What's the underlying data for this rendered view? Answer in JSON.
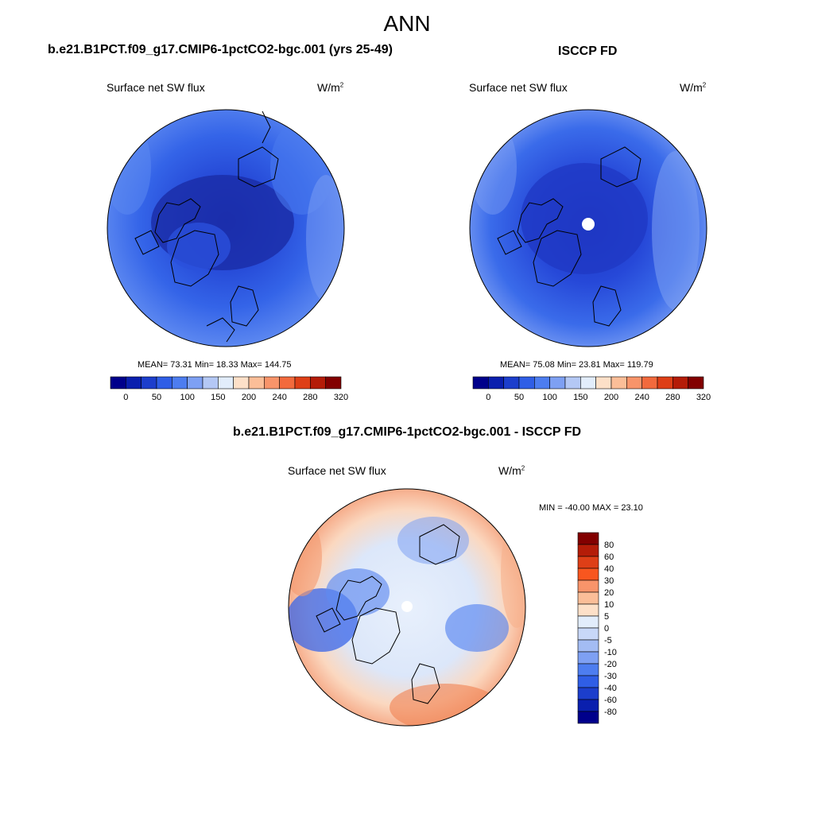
{
  "title": "ANN",
  "panels": [
    {
      "id": "model",
      "title": "b.e21.B1PCT.f09_g17.CMIP6-1pctCO2-bgc.001 (yrs 25-49)",
      "variable": "Surface net SW flux",
      "units_base": "W/m",
      "units_exp": "2",
      "stats": "MEAN=  73.31  Min=  18.33  Max= 144.75"
    },
    {
      "id": "obs",
      "title": "ISCCP FD",
      "variable": "Surface net SW flux",
      "units_base": "W/m",
      "units_exp": "2",
      "stats": "MEAN=  75.08  Min=  23.81  Max= 119.79"
    },
    {
      "id": "diff",
      "title": "b.e21.B1PCT.f09_g17.CMIP6-1pctCO2-bgc.001 - ISCCP FD",
      "variable": "Surface net SW flux",
      "units_base": "W/m",
      "units_exp": "2",
      "stats": "MIN = -40.00 MAX =  23.10"
    }
  ],
  "colorbar_abs": {
    "ticks": [
      "0",
      "50",
      "100",
      "150",
      "200",
      "240",
      "280",
      "320"
    ],
    "colors": [
      "#00008b",
      "#0a1fae",
      "#1c3ecc",
      "#2f5ee6",
      "#4d7df0",
      "#7ea0f3",
      "#b4c8f5",
      "#e2edfb",
      "#fde0c8",
      "#fbbe98",
      "#f8946a",
      "#f26a3d",
      "#de3f17",
      "#b41c08",
      "#820000"
    ]
  },
  "colorbar_diff": {
    "ticks": [
      "80",
      "60",
      "40",
      "30",
      "20",
      "10",
      "5",
      "0",
      "-5",
      "-10",
      "-20",
      "-30",
      "-40",
      "-60",
      "-80"
    ],
    "colors": [
      "#820000",
      "#b41c08",
      "#de3f17",
      "#f8561f",
      "#f8946a",
      "#fbbe98",
      "#fde0c8",
      "#e2edfb",
      "#c8d8f8",
      "#a3bcf3",
      "#7ea0f3",
      "#4d7df0",
      "#2f5ee6",
      "#1c3ecc",
      "#0a1fae",
      "#00008b"
    ]
  }
}
